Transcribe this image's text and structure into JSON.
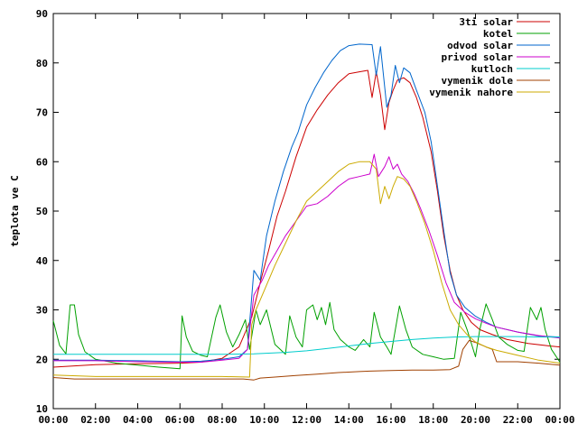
{
  "chart_data": {
    "type": "line",
    "title": "",
    "xlabel": "",
    "ylabel": "teplota ve C",
    "xlim": [
      0,
      24
    ],
    "ylim": [
      10,
      90
    ],
    "grid": false,
    "legend_position": "top-right",
    "x_ticks": [
      0,
      2,
      4,
      6,
      8,
      10,
      12,
      14,
      16,
      18,
      20,
      22,
      24
    ],
    "x_tick_labels": [
      "00:00",
      "02:00",
      "04:00",
      "06:00",
      "08:00",
      "10:00",
      "12:00",
      "14:00",
      "16:00",
      "18:00",
      "20:00",
      "22:00",
      "00:00"
    ],
    "y_ticks": [
      10,
      20,
      30,
      40,
      50,
      60,
      70,
      80,
      90
    ],
    "series": [
      {
        "name": "3ti solar",
        "color": "#cc0000",
        "points": [
          [
            0,
            18.4
          ],
          [
            2,
            18.9
          ],
          [
            4,
            19.1
          ],
          [
            6,
            19.2
          ],
          [
            7,
            19.4
          ],
          [
            8,
            20.2
          ],
          [
            8.8,
            22.5
          ],
          [
            9.4,
            28.5
          ],
          [
            9.8,
            35.5
          ],
          [
            10.2,
            42
          ],
          [
            10.6,
            49
          ],
          [
            11,
            54
          ],
          [
            11.5,
            61
          ],
          [
            12,
            67
          ],
          [
            12.5,
            70.5
          ],
          [
            13,
            73.5
          ],
          [
            13.5,
            76
          ],
          [
            14,
            77.8
          ],
          [
            14.5,
            78.2
          ],
          [
            14.9,
            78.5
          ],
          [
            15.1,
            73
          ],
          [
            15.3,
            78.2
          ],
          [
            15.5,
            73.5
          ],
          [
            15.7,
            66.5
          ],
          [
            15.9,
            72
          ],
          [
            16.1,
            74.5
          ],
          [
            16.3,
            76.5
          ],
          [
            16.6,
            77
          ],
          [
            16.9,
            76
          ],
          [
            17.2,
            73
          ],
          [
            17.5,
            69
          ],
          [
            17.9,
            62
          ],
          [
            18.2,
            54
          ],
          [
            18.5,
            45
          ],
          [
            18.8,
            38
          ],
          [
            19.1,
            33
          ],
          [
            19.4,
            30
          ],
          [
            19.8,
            27.5
          ],
          [
            20.2,
            26
          ],
          [
            20.8,
            25
          ],
          [
            21.5,
            24
          ],
          [
            22.5,
            23.2
          ],
          [
            23.5,
            22.7
          ],
          [
            24,
            22.5
          ]
        ]
      },
      {
        "name": "kotel",
        "color": "#00a000",
        "points": [
          [
            0,
            27.8
          ],
          [
            0.3,
            22.8
          ],
          [
            0.6,
            21.1
          ],
          [
            0.8,
            31
          ],
          [
            1,
            31
          ],
          [
            1.2,
            25
          ],
          [
            1.5,
            21.5
          ],
          [
            2,
            20
          ],
          [
            3,
            19.2
          ],
          [
            4,
            18.8
          ],
          [
            5,
            18.4
          ],
          [
            6,
            18.1
          ],
          [
            6.1,
            28.8
          ],
          [
            6.3,
            24.5
          ],
          [
            6.6,
            21.6
          ],
          [
            7,
            20.8
          ],
          [
            7.3,
            20.5
          ],
          [
            7.7,
            28.5
          ],
          [
            7.9,
            31
          ],
          [
            8.2,
            25.5
          ],
          [
            8.5,
            22.5
          ],
          [
            8.8,
            25
          ],
          [
            9.1,
            28
          ],
          [
            9.3,
            22
          ],
          [
            9.6,
            30
          ],
          [
            9.8,
            27
          ],
          [
            10.1,
            30
          ],
          [
            10.5,
            23
          ],
          [
            11,
            21
          ],
          [
            11.2,
            28.8
          ],
          [
            11.5,
            24.5
          ],
          [
            11.8,
            22.5
          ],
          [
            12,
            30
          ],
          [
            12.3,
            31
          ],
          [
            12.5,
            28
          ],
          [
            12.7,
            30.5
          ],
          [
            12.9,
            27
          ],
          [
            13.1,
            31.5
          ],
          [
            13.3,
            26
          ],
          [
            13.6,
            24
          ],
          [
            14,
            22.5
          ],
          [
            14.3,
            21.8
          ],
          [
            14.7,
            24
          ],
          [
            15,
            22.5
          ],
          [
            15.2,
            29.5
          ],
          [
            15.5,
            24.5
          ],
          [
            15.8,
            22.5
          ],
          [
            16,
            21
          ],
          [
            16.4,
            30.8
          ],
          [
            16.7,
            26
          ],
          [
            17,
            22.5
          ],
          [
            17.5,
            21
          ],
          [
            18,
            20.5
          ],
          [
            18.5,
            20
          ],
          [
            19,
            20.2
          ],
          [
            19.3,
            29.5
          ],
          [
            19.6,
            26
          ],
          [
            20,
            20.5
          ],
          [
            20.2,
            26
          ],
          [
            20.5,
            31.2
          ],
          [
            20.8,
            28
          ],
          [
            21.1,
            24.5
          ],
          [
            21.5,
            23
          ],
          [
            22,
            21.8
          ],
          [
            22.3,
            21.6
          ],
          [
            22.6,
            30.5
          ],
          [
            22.9,
            28
          ],
          [
            23.1,
            30.5
          ],
          [
            23.3,
            26
          ],
          [
            23.6,
            22
          ],
          [
            24,
            19.4
          ]
        ]
      },
      {
        "name": "odvod solar",
        "color": "#0066cc",
        "points": [
          [
            0,
            19.8
          ],
          [
            2,
            19.8
          ],
          [
            4,
            19.7
          ],
          [
            6,
            19.5
          ],
          [
            7,
            19.6
          ],
          [
            8,
            20
          ],
          [
            8.8,
            20.5
          ],
          [
            9.2,
            22
          ],
          [
            9.5,
            38
          ],
          [
            9.8,
            36
          ],
          [
            10.1,
            45
          ],
          [
            10.5,
            52
          ],
          [
            10.9,
            58
          ],
          [
            11.3,
            63
          ],
          [
            11.6,
            66
          ],
          [
            12,
            71.5
          ],
          [
            12.4,
            75
          ],
          [
            12.8,
            78
          ],
          [
            13.2,
            80.5
          ],
          [
            13.6,
            82.5
          ],
          [
            14,
            83.5
          ],
          [
            14.5,
            83.8
          ],
          [
            15.1,
            83.7
          ],
          [
            15.3,
            77.5
          ],
          [
            15.5,
            83.3
          ],
          [
            15.8,
            71
          ],
          [
            16,
            73.5
          ],
          [
            16.2,
            79.5
          ],
          [
            16.4,
            76
          ],
          [
            16.6,
            79
          ],
          [
            16.9,
            78
          ],
          [
            17.2,
            74.5
          ],
          [
            17.6,
            70
          ],
          [
            17.9,
            64
          ],
          [
            18.2,
            55
          ],
          [
            18.5,
            46
          ],
          [
            18.8,
            37.5
          ],
          [
            19.1,
            33
          ],
          [
            19.5,
            30.5
          ],
          [
            20,
            28.7
          ],
          [
            20.5,
            27.5
          ],
          [
            21,
            26.5
          ],
          [
            22,
            25.5
          ],
          [
            23,
            24.7
          ],
          [
            24,
            24.5
          ]
        ]
      },
      {
        "name": "privod solar",
        "color": "#cc00cc",
        "points": [
          [
            0,
            19.7
          ],
          [
            2,
            19.7
          ],
          [
            4,
            19.5
          ],
          [
            6,
            19.4
          ],
          [
            7,
            19.4
          ],
          [
            8,
            19.8
          ],
          [
            8.8,
            20.2
          ],
          [
            9.2,
            22
          ],
          [
            9.5,
            33
          ],
          [
            9.9,
            36
          ],
          [
            10.2,
            39
          ],
          [
            10.6,
            42
          ],
          [
            11,
            45
          ],
          [
            11.5,
            48
          ],
          [
            12,
            51
          ],
          [
            12.5,
            51.5
          ],
          [
            13,
            53
          ],
          [
            13.5,
            55
          ],
          [
            14,
            56.5
          ],
          [
            14.5,
            57
          ],
          [
            15,
            57.5
          ],
          [
            15.2,
            61.5
          ],
          [
            15.4,
            57
          ],
          [
            15.7,
            59
          ],
          [
            15.9,
            61
          ],
          [
            16.1,
            58.5
          ],
          [
            16.3,
            59.5
          ],
          [
            16.5,
            57.5
          ],
          [
            16.8,
            56
          ],
          [
            17.1,
            53.5
          ],
          [
            17.4,
            50.5
          ],
          [
            17.8,
            46
          ],
          [
            18.2,
            41
          ],
          [
            18.6,
            35.5
          ],
          [
            19,
            31.5
          ],
          [
            19.5,
            29.5
          ],
          [
            20,
            28.2
          ],
          [
            20.5,
            27.3
          ],
          [
            21,
            26.5
          ],
          [
            22,
            25.5
          ],
          [
            23,
            24.8
          ],
          [
            24,
            24.3
          ]
        ]
      },
      {
        "name": "kutloch",
        "color": "#00cccc",
        "points": [
          [
            0,
            21
          ],
          [
            2,
            21
          ],
          [
            4,
            21
          ],
          [
            6,
            21
          ],
          [
            8,
            21
          ],
          [
            9.5,
            21.1
          ],
          [
            11,
            21.4
          ],
          [
            12,
            21.7
          ],
          [
            13,
            22.2
          ],
          [
            14,
            22.7
          ],
          [
            15,
            23.2
          ],
          [
            16,
            23.6
          ],
          [
            17,
            24
          ],
          [
            18,
            24.3
          ],
          [
            19,
            24.5
          ],
          [
            20,
            24.6
          ],
          [
            21,
            24.6
          ],
          [
            22,
            24.6
          ],
          [
            23,
            24.5
          ],
          [
            24,
            24.5
          ]
        ]
      },
      {
        "name": "vymenik dole",
        "color": "#a04000",
        "points": [
          [
            0,
            16.3
          ],
          [
            1,
            16
          ],
          [
            2,
            16
          ],
          [
            4,
            16
          ],
          [
            6,
            16
          ],
          [
            8,
            16
          ],
          [
            9,
            16
          ],
          [
            9.5,
            15.8
          ],
          [
            9.8,
            16.2
          ],
          [
            10.5,
            16.4
          ],
          [
            11.5,
            16.7
          ],
          [
            12.5,
            17
          ],
          [
            13.5,
            17.3
          ],
          [
            14.5,
            17.5
          ],
          [
            15,
            17.6
          ],
          [
            16,
            17.7
          ],
          [
            17,
            17.8
          ],
          [
            18,
            17.8
          ],
          [
            18.8,
            17.9
          ],
          [
            19.2,
            18.6
          ],
          [
            19.4,
            22
          ],
          [
            19.7,
            23.8
          ],
          [
            20,
            23.4
          ],
          [
            20.5,
            22.5
          ],
          [
            20.8,
            22
          ],
          [
            21,
            19.5
          ],
          [
            21.5,
            19.5
          ],
          [
            22,
            19.5
          ],
          [
            23,
            19.2
          ],
          [
            24,
            18.8
          ]
        ]
      },
      {
        "name": "vymenik nahore",
        "color": "#ccaa00",
        "points": [
          [
            0,
            16.8
          ],
          [
            2,
            16.5
          ],
          [
            4,
            16.5
          ],
          [
            6,
            16.5
          ],
          [
            8,
            16.5
          ],
          [
            9.3,
            16.4
          ],
          [
            9.4,
            27
          ],
          [
            9.6,
            30
          ],
          [
            10,
            34
          ],
          [
            10.5,
            39
          ],
          [
            11,
            43.5
          ],
          [
            11.5,
            48
          ],
          [
            12,
            52
          ],
          [
            12.5,
            54
          ],
          [
            13,
            56
          ],
          [
            13.5,
            58
          ],
          [
            14,
            59.5
          ],
          [
            14.5,
            60
          ],
          [
            15,
            60
          ],
          [
            15.3,
            58.5
          ],
          [
            15.5,
            51.5
          ],
          [
            15.7,
            55
          ],
          [
            15.9,
            52.5
          ],
          [
            16.1,
            55
          ],
          [
            16.3,
            57
          ],
          [
            16.6,
            56.5
          ],
          [
            16.9,
            55
          ],
          [
            17.2,
            52
          ],
          [
            17.6,
            47.5
          ],
          [
            18,
            42
          ],
          [
            18.4,
            35.5
          ],
          [
            18.8,
            30
          ],
          [
            19.2,
            27
          ],
          [
            19.6,
            25
          ],
          [
            20,
            23.5
          ],
          [
            20.5,
            22.5
          ],
          [
            21,
            21.8
          ],
          [
            22,
            20.8
          ],
          [
            23,
            19.8
          ],
          [
            24,
            19.2
          ]
        ]
      }
    ]
  }
}
